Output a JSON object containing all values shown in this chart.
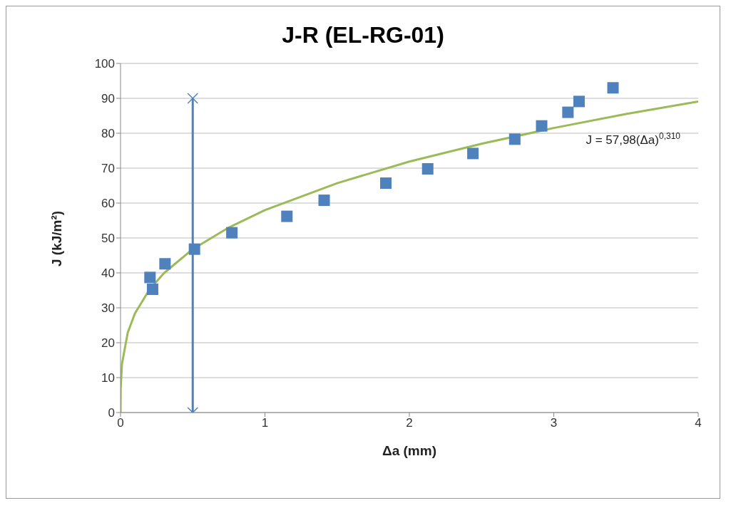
{
  "chart_data": {
    "type": "scatter",
    "title": "J-R (EL-RG-01)",
    "xlabel": "Δa (mm)",
    "ylabel": "J (kJ/m²)",
    "xlim": [
      0,
      4
    ],
    "xticks": [
      0,
      1,
      2,
      3,
      4
    ],
    "ylim": [
      0,
      100
    ],
    "yticks": [
      0,
      10,
      20,
      30,
      40,
      50,
      60,
      70,
      80,
      90,
      100
    ],
    "grid": "y",
    "legend": false,
    "series": [
      {
        "color": "#4f81bd",
        "marker": "square",
        "x": [
          0.204,
          0.222,
          0.308,
          0.512,
          0.771,
          1.152,
          1.41,
          1.837,
          2.127,
          2.44,
          2.73,
          2.916,
          3.098,
          3.175,
          3.41
        ],
        "values": [
          38.7,
          35.3,
          42.6,
          46.8,
          51.5,
          56.2,
          60.8,
          65.7,
          69.8,
          74.2,
          78.3,
          82.1,
          86.0,
          89.1,
          93.0
        ]
      },
      {
        "type": "line",
        "color": "#9bbb59",
        "marker": "none",
        "x": [
          0,
          0.001,
          0.01,
          0.05,
          0.1,
          0.2,
          0.3,
          0.5,
          0.75,
          1,
          1.5,
          2,
          2.5,
          3,
          3.5,
          4
        ],
        "values": [
          0,
          6.8,
          13.9,
          22.9,
          28.4,
          35.2,
          39.9,
          46.8,
          53.0,
          58.0,
          65.7,
          71.9,
          77.0,
          81.5,
          85.5,
          89.1
        ]
      },
      {
        "type": "line",
        "color": "#4f81bd",
        "marker": "cross",
        "x": [
          0.5,
          0.5
        ],
        "values": [
          0,
          90
        ]
      }
    ],
    "annotations": [
      "J = 57,98(Δa)$^{0,310}$"
    ]
  }
}
